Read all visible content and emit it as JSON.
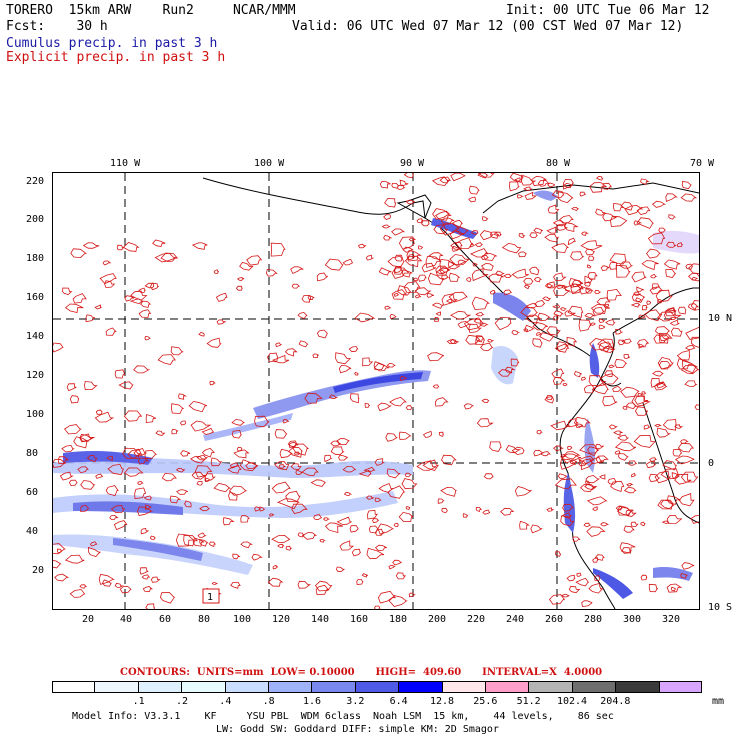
{
  "header": {
    "model_line": "TORERO  15km ARW    Run2     NCAR/MMM",
    "init": "Init: 00 UTC Tue 06 Mar 12",
    "fcst": "Fcst:    30 h",
    "valid": "Valid: 06 UTC Wed 07 Mar 12 (00 CST Wed 07 Mar 12)",
    "cumulus": "Cumulus precip. in past 3 h",
    "explicit": "Explicit precip. in past 3 h"
  },
  "axes": {
    "lon_labels": [
      "110 W",
      "100 W",
      "90 W",
      "80 W",
      "70 W"
    ],
    "lat_labels": [
      "10 N",
      "0",
      "10 S"
    ],
    "y_ticks": [
      "220",
      "200",
      "180",
      "160",
      "140",
      "120",
      "100",
      "80",
      "60",
      "40",
      "20"
    ],
    "x_ticks": [
      "20",
      "40",
      "60",
      "80",
      "100",
      "120",
      "140",
      "160",
      "180",
      "200",
      "220",
      "240",
      "260",
      "280",
      "300",
      "320"
    ]
  },
  "map": {
    "marker_label": "1"
  },
  "contours": {
    "text": "CONTOURS:  UNITS=mm  LOW= 0.10000      HIGH=  409.60      INTERVAL=X  4.0000"
  },
  "legend": {
    "colors": [
      "#ffffff",
      "#eef6ff",
      "#dff0ff",
      "#e8fbff",
      "#c8ddff",
      "#9fb1f7",
      "#7a87ee",
      "#4f5be6",
      "#0000ff",
      "#ffe6ea",
      "#ff9ec8",
      "#b4b4b4",
      "#6e6e6e",
      "#3a3a3a",
      "#d8a6ff"
    ],
    "labels": [
      ".1",
      ".2",
      ".4",
      ".8",
      "1.6",
      "3.2",
      "6.4",
      "12.8",
      "25.6",
      "51.2",
      "102.4",
      "204.8"
    ],
    "unit": "mm"
  },
  "footer": {
    "line1": "Model Info: V3.3.1    KF     YSU PBL  WDM 6class  Noah LSM  15 km,    44 levels,    86 sec",
    "line2": "LW: Godd SW: Goddard DIFF: simple KM: 2D Smagor"
  }
}
